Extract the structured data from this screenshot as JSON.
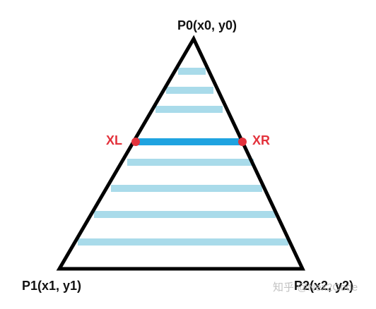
{
  "vertices": {
    "p0": "P0(x0, y0)",
    "p1": "P1(x1, y1)",
    "p2": "P2(x2, y2)"
  },
  "scanline_labels": {
    "left": "XL",
    "right": "XR"
  },
  "watermark": "知乎 @Nex2Code",
  "colors": {
    "outline": "#000000",
    "scanline": "#a9dbea",
    "active_scanline": "#1fa3e0",
    "endpoint": "#e3323c",
    "endpoint_label": "#e3323c"
  }
}
